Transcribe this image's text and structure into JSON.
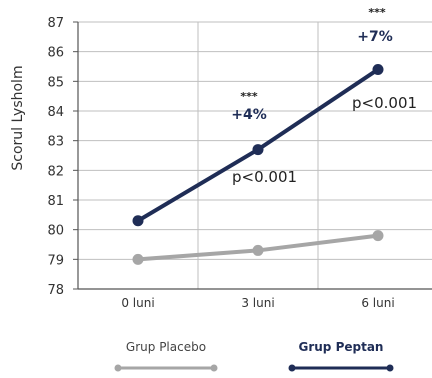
{
  "chart_data": {
    "type": "line",
    "title": "",
    "xlabel": "",
    "ylabel": "Scorul Lysholm",
    "categories": [
      "0 luni",
      "3 luni",
      "6 luni"
    ],
    "ylim": [
      78,
      87
    ],
    "yticks": [
      78,
      79,
      80,
      81,
      82,
      83,
      84,
      85,
      86,
      87
    ],
    "grid": true,
    "legend_position": "bottom",
    "series": [
      {
        "name": "Grup Placebo",
        "values": [
          79.0,
          79.3,
          79.8
        ],
        "color": "#a6a6a6"
      },
      {
        "name": "Grup Peptan",
        "values": [
          80.3,
          82.7,
          85.4
        ],
        "color": "#1f2d56"
      }
    ],
    "annotations": [
      {
        "series": 1,
        "point": 1,
        "stars": "***",
        "change": "+4%",
        "pvalue": "p<0.001"
      },
      {
        "series": 1,
        "point": 2,
        "stars": "***",
        "change": "+7%",
        "pvalue": "p<0.001"
      }
    ]
  },
  "colors": {
    "axis": "#555555",
    "grid": "#bfbfbf",
    "text": "#333333",
    "annotation": "#1f2d56"
  }
}
